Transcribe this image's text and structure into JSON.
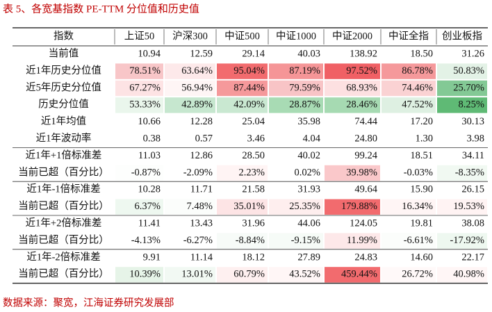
{
  "header": {
    "title": "表 5、各宽基指数 PE-TTM 分位值和历史值"
  },
  "table": {
    "columns": [
      "指数",
      "上证50",
      "沪深300",
      "中证500",
      "中证1000",
      "中证2000",
      "中证全指",
      "创业板指"
    ],
    "rows": [
      [
        "当前值",
        "10.94",
        "12.59",
        "29.14",
        "40.03",
        "138.92",
        "18.50",
        "31.26"
      ],
      [
        "近1年历史分位值",
        "78.51%",
        "63.64%",
        "95.04%",
        "87.19%",
        "97.52%",
        "86.78%",
        "50.83%"
      ],
      [
        "近5年历史分位值",
        "67.27%",
        "56.94%",
        "87.44%",
        "79.59%",
        "68.93%",
        "74.46%",
        "25.70%"
      ],
      [
        "历史分位值",
        "53.33%",
        "42.89%",
        "42.09%",
        "28.87%",
        "28.46%",
        "47.52%",
        "8.25%"
      ],
      [
        "近1年均值",
        "10.66",
        "12.28",
        "25.04",
        "35.98",
        "74.44",
        "17.20",
        "30.13"
      ],
      [
        "近1年波动率",
        "0.38",
        "0.57",
        "3.46",
        "4.04",
        "24.80",
        "1.30",
        "3.98"
      ],
      [
        "近1年+1倍标准差",
        "11.03",
        "12.86",
        "28.50",
        "40.02",
        "99.24",
        "18.51",
        "34.11"
      ],
      [
        "当前已超（百分比）",
        "-0.87%",
        "-2.09%",
        "2.23%",
        "0.02%",
        "39.98%",
        "-0.03%",
        "-8.35%"
      ],
      [
        "近1年-1倍标准差",
        "10.28",
        "11.71",
        "21.58",
        "31.93",
        "49.64",
        "15.90",
        "26.15"
      ],
      [
        "当前已超（百分比）",
        "6.37%",
        "7.48%",
        "35.01%",
        "25.35%",
        "179.88%",
        "16.34%",
        "19.53%"
      ],
      [
        "近1年+2倍标准差",
        "11.41",
        "13.43",
        "31.96",
        "44.06",
        "124.05",
        "19.81",
        "38.08"
      ],
      [
        "当前已超（百分比）",
        "-4.13%",
        "-6.27%",
        "-8.84%",
        "-9.15%",
        "11.99%",
        "-6.61%",
        "-17.92%"
      ],
      [
        "近1年-2倍标准差",
        "9.91",
        "11.14",
        "18.12",
        "27.89",
        "24.83",
        "14.60",
        "22.17"
      ],
      [
        "当前已超（百分比）",
        "10.39%",
        "13.01%",
        "60.79%",
        "43.52%",
        "459.44%",
        "26.72%",
        "40.98%"
      ]
    ]
  },
  "source": "数据来源：聚宽，江海证券研究发展部"
}
